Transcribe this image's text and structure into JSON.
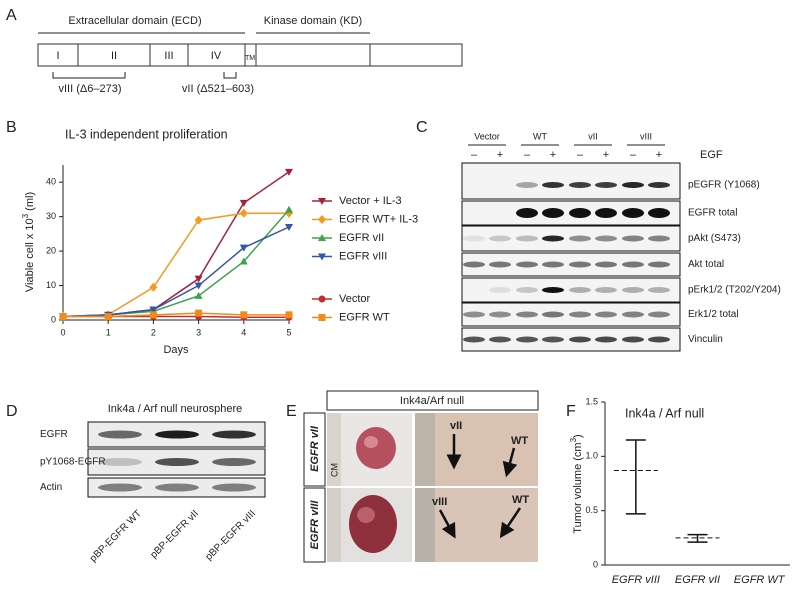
{
  "panel_labels": [
    "A",
    "B",
    "C",
    "D",
    "E",
    "F"
  ],
  "domain_map": {
    "ecd": "Extracellular domain (ECD)",
    "kd": "Kinase domain (KD)",
    "domains": [
      "I",
      "II",
      "III",
      "IV"
    ],
    "tm": "TM",
    "deletions": [
      "vIII (Δ6–273)",
      "vII (Δ521–603)"
    ]
  },
  "chart_data": [
    {
      "type": "line",
      "title": "IL-3 independent proliferation",
      "x_label": "Days",
      "y_label": {
        "text": "Viable cell x 10",
        "superscript": "3",
        "suffix": " (ml)"
      },
      "x": [
        0,
        1,
        2,
        3,
        4,
        5
      ],
      "xlim": [
        0,
        5
      ],
      "xticks": [
        0,
        1,
        2,
        3,
        4,
        5
      ],
      "ylim": [
        0,
        45
      ],
      "yticks": [
        0,
        10,
        20,
        30,
        40
      ],
      "series": [
        {
          "name": "Vector + IL-3",
          "color": "#a3233a",
          "marker": "triangle-down",
          "values": [
            1,
            1.5,
            3,
            12,
            34,
            43
          ]
        },
        {
          "name": "EGFR WT+ IL-3",
          "color": "#f39a1f",
          "marker": "diamond",
          "values": [
            1,
            1.5,
            9.5,
            29,
            31,
            31
          ]
        },
        {
          "name": "EGFR vII",
          "color": "#3fa34d",
          "marker": "triangle-up",
          "values": [
            1,
            1.5,
            2.5,
            7,
            17,
            32
          ]
        },
        {
          "name": "EGFR vIII",
          "color": "#3556a8",
          "marker": "triangle-down",
          "values": [
            1,
            1.5,
            3,
            10,
            21,
            27
          ]
        },
        {
          "name": "Vector",
          "color": "#c0302b",
          "marker": "circle",
          "values": [
            1,
            1,
            1,
            1,
            0.8,
            0.8
          ]
        },
        {
          "name": "EGFR WT",
          "color": "#f28a1c",
          "marker": "square",
          "values": [
            1,
            1,
            1.5,
            2,
            1.5,
            1.5
          ]
        }
      ]
    },
    {
      "type": "errorbar",
      "title": "Ink4a / Arf null",
      "y_label": {
        "text": "Tumor volume (cm",
        "superscript": "3",
        "suffix": ")"
      },
      "categories": [
        "EGFR vIII",
        "EGFR vII",
        "EGFR WT"
      ],
      "values": [
        0.87,
        0.25,
        null
      ],
      "lower": [
        0.47,
        0.21,
        null
      ],
      "upper": [
        1.15,
        0.28,
        null
      ],
      "ylim": [
        0,
        1.5
      ],
      "yticks": [
        0,
        0.5,
        {
          "value": 1,
          "label": "1.0"
        },
        1.5
      ]
    }
  ],
  "western_blot": {
    "conditions": [
      "Vector",
      "WT",
      "vII",
      "vIII"
    ],
    "stimulus": "EGF",
    "treatments": [
      "–",
      "+",
      "–",
      "+",
      "–",
      "+",
      "–",
      "+"
    ],
    "rows": [
      "pEGFR (Y1068)",
      "EGFR total",
      "pAkt (S473)",
      "Akt total",
      "pErk1/2 (T202/Y204)",
      "Erk1/2 total",
      "Vinculin"
    ]
  },
  "neurosphere_blot": {
    "title": "Ink4a / Arf null neurosphere",
    "rows": [
      "EGFR",
      "pY1068-EGFR",
      "Actin"
    ],
    "samples": [
      "pBP-EGFR WT",
      "pBP-EGFR vII",
      "pBP-EGFR vIII"
    ]
  },
  "xenograft": {
    "title": "Ink4a/Arf null",
    "rows": [
      "EGFR vII",
      "EGFR vIII"
    ],
    "ruler_unit": "CM",
    "annotations": [
      [
        "vII",
        "WT"
      ],
      [
        "vIII",
        "WT"
      ]
    ]
  }
}
